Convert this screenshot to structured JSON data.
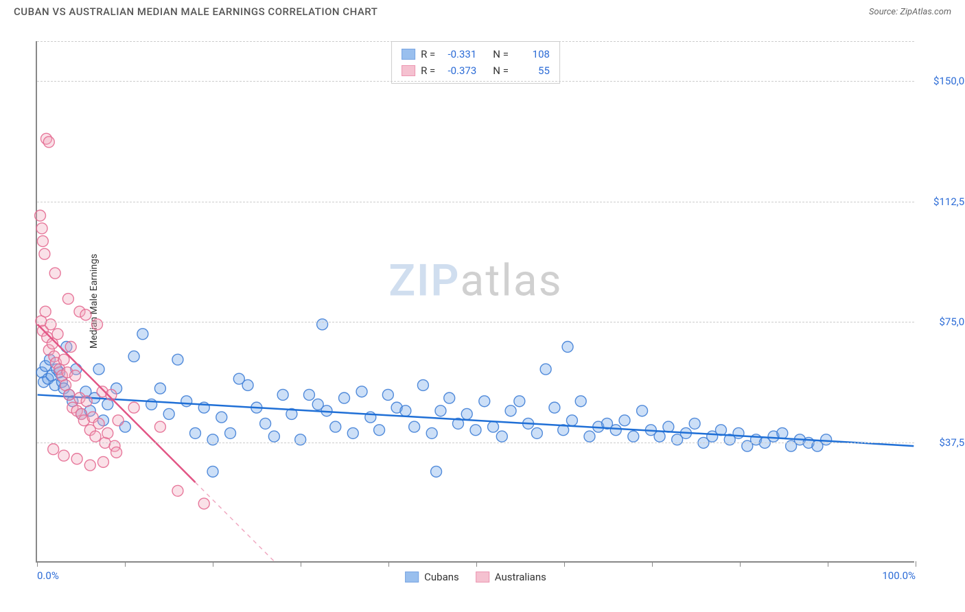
{
  "header": {
    "title": "CUBAN VS AUSTRALIAN MEDIAN MALE EARNINGS CORRELATION CHART",
    "source_prefix": "Source: ",
    "source_name": "ZipAtlas.com"
  },
  "watermark": {
    "zip": "ZIP",
    "atlas": "atlas"
  },
  "chart": {
    "type": "scatter",
    "y_axis_label": "Median Male Earnings",
    "background_color": "#ffffff",
    "grid_color": "#cccccc",
    "axis_color": "#888888",
    "xlim": [
      0,
      100
    ],
    "ylim": [
      0,
      162500
    ],
    "x_ticks": [
      0,
      10,
      20,
      30,
      40,
      50,
      60,
      70,
      80,
      90,
      100
    ],
    "x_tick_labels": {
      "0": "0.0%",
      "100": "100.0%"
    },
    "y_gridlines": [
      37500,
      75000,
      112500,
      150000
    ],
    "y_tick_labels": {
      "37500": "$37,500",
      "75000": "$75,000",
      "112500": "$112,500",
      "150000": "$150,000"
    },
    "tick_label_color": "#2b6bd6",
    "label_fontsize": 14,
    "tick_fontsize": 15,
    "marker_radius": 8,
    "marker_fill_opacity": 0.35,
    "marker_stroke_opacity": 0.9,
    "marker_stroke_width": 1.4,
    "trendline_width": 2.5,
    "series": [
      {
        "name": "Cubans",
        "color": "#6ea4e8",
        "stroke": "#3f7ed6",
        "trend_color": "#1f6fd6",
        "trendline": {
          "x1": 0,
          "y1": 52000,
          "x2": 100,
          "y2": 36000,
          "dash_after_x": null
        },
        "R": "-0.331",
        "N": "108",
        "points": [
          [
            0.5,
            59000
          ],
          [
            0.7,
            56000
          ],
          [
            0.9,
            61000
          ],
          [
            1.2,
            57000
          ],
          [
            1.4,
            63000
          ],
          [
            1.6,
            58000
          ],
          [
            2,
            55000
          ],
          [
            2.2,
            60000
          ],
          [
            2.5,
            59000
          ],
          [
            2.8,
            56000
          ],
          [
            3,
            54000
          ],
          [
            3.3,
            67000
          ],
          [
            3.6,
            52000
          ],
          [
            4,
            50000
          ],
          [
            4.4,
            60000
          ],
          [
            5,
            46000
          ],
          [
            5.5,
            53000
          ],
          [
            6,
            47000
          ],
          [
            6.5,
            51000
          ],
          [
            7,
            60000
          ],
          [
            7.5,
            44000
          ],
          [
            8,
            49000
          ],
          [
            9,
            54000
          ],
          [
            10,
            42000
          ],
          [
            11,
            64000
          ],
          [
            12,
            71000
          ],
          [
            13,
            49000
          ],
          [
            14,
            54000
          ],
          [
            15,
            46000
          ],
          [
            16,
            63000
          ],
          [
            17,
            50000
          ],
          [
            18,
            40000
          ],
          [
            19,
            48000
          ],
          [
            20,
            38000
          ],
          [
            21,
            45000
          ],
          [
            22,
            40000
          ],
          [
            23,
            57000
          ],
          [
            24,
            55000
          ],
          [
            25,
            48000
          ],
          [
            26,
            43000
          ],
          [
            27,
            39000
          ],
          [
            28,
            52000
          ],
          [
            29,
            46000
          ],
          [
            30,
            38000
          ],
          [
            20,
            28000
          ],
          [
            31,
            52000
          ],
          [
            32,
            49000
          ],
          [
            32.5,
            74000
          ],
          [
            33,
            47000
          ],
          [
            34,
            42000
          ],
          [
            35,
            51000
          ],
          [
            36,
            40000
          ],
          [
            37,
            53000
          ],
          [
            38,
            45000
          ],
          [
            39,
            41000
          ],
          [
            40,
            52000
          ],
          [
            41,
            48000
          ],
          [
            42,
            47000
          ],
          [
            43,
            42000
          ],
          [
            44,
            55000
          ],
          [
            45,
            40000
          ],
          [
            45.5,
            28000
          ],
          [
            46,
            47000
          ],
          [
            47,
            51000
          ],
          [
            48,
            43000
          ],
          [
            49,
            46000
          ],
          [
            50,
            41000
          ],
          [
            51,
            50000
          ],
          [
            52,
            42000
          ],
          [
            53,
            39000
          ],
          [
            54,
            47000
          ],
          [
            55,
            50000
          ],
          [
            56,
            43000
          ],
          [
            57,
            40000
          ],
          [
            58,
            60000
          ],
          [
            59,
            48000
          ],
          [
            60,
            41000
          ],
          [
            60.5,
            67000
          ],
          [
            61,
            44000
          ],
          [
            62,
            50000
          ],
          [
            63,
            39000
          ],
          [
            64,
            42000
          ],
          [
            65,
            43000
          ],
          [
            66,
            41000
          ],
          [
            67,
            44000
          ],
          [
            68,
            39000
          ],
          [
            69,
            47000
          ],
          [
            70,
            41000
          ],
          [
            71,
            39000
          ],
          [
            72,
            42000
          ],
          [
            73,
            38000
          ],
          [
            74,
            40000
          ],
          [
            75,
            43000
          ],
          [
            76,
            37000
          ],
          [
            77,
            39000
          ],
          [
            78,
            41000
          ],
          [
            79,
            38000
          ],
          [
            80,
            40000
          ],
          [
            81,
            36000
          ],
          [
            82,
            38000
          ],
          [
            83,
            37000
          ],
          [
            84,
            39000
          ],
          [
            85,
            40000
          ],
          [
            86,
            36000
          ],
          [
            87,
            38000
          ],
          [
            88,
            37000
          ],
          [
            89,
            36000
          ],
          [
            90,
            38000
          ]
        ]
      },
      {
        "name": "Australians",
        "color": "#f2a8bd",
        "stroke": "#e46a91",
        "trend_color": "#e25585",
        "trendline": {
          "x1": 0,
          "y1": 74000,
          "x2": 27,
          "y2": 0,
          "dash_after_x": 18
        },
        "R": "-0.373",
        "N": "55",
        "points": [
          [
            0.3,
            108000
          ],
          [
            0.5,
            104000
          ],
          [
            0.6,
            100000
          ],
          [
            0.8,
            96000
          ],
          [
            1,
            132000
          ],
          [
            1.3,
            131000
          ],
          [
            0.4,
            75000
          ],
          [
            0.6,
            72000
          ],
          [
            0.9,
            78000
          ],
          [
            1.1,
            70000
          ],
          [
            1.3,
            66000
          ],
          [
            1.5,
            74000
          ],
          [
            1.7,
            68000
          ],
          [
            1.9,
            64000
          ],
          [
            2.1,
            62000
          ],
          [
            2.3,
            71000
          ],
          [
            2.5,
            60000
          ],
          [
            2.8,
            58000
          ],
          [
            3,
            63000
          ],
          [
            3.2,
            55000
          ],
          [
            3.4,
            59000
          ],
          [
            3.6,
            52000
          ],
          [
            3.8,
            67000
          ],
          [
            4,
            48000
          ],
          [
            4.3,
            58000
          ],
          [
            4.5,
            47000
          ],
          [
            4.8,
            51000
          ],
          [
            5,
            46000
          ],
          [
            5.3,
            44000
          ],
          [
            5.6,
            50000
          ],
          [
            6,
            41000
          ],
          [
            6.3,
            45000
          ],
          [
            6.6,
            39000
          ],
          [
            7,
            43000
          ],
          [
            7.4,
            53000
          ],
          [
            7.7,
            37000
          ],
          [
            8,
            40000
          ],
          [
            8.4,
            52000
          ],
          [
            8.8,
            36000
          ],
          [
            9.2,
            44000
          ],
          [
            2,
            90000
          ],
          [
            3.5,
            82000
          ],
          [
            4.8,
            78000
          ],
          [
            5.5,
            77000
          ],
          [
            6.8,
            74000
          ],
          [
            1.8,
            35000
          ],
          [
            3,
            33000
          ],
          [
            4.5,
            32000
          ],
          [
            6,
            30000
          ],
          [
            7.5,
            31000
          ],
          [
            9,
            34000
          ],
          [
            11,
            48000
          ],
          [
            14,
            42000
          ],
          [
            16,
            22000
          ],
          [
            19,
            18000
          ]
        ]
      }
    ],
    "stats_legend": {
      "R_label": "R =",
      "N_label": "N ="
    },
    "bottom_legend_labels": {
      "cubans": "Cubans",
      "australians": "Australians"
    }
  }
}
